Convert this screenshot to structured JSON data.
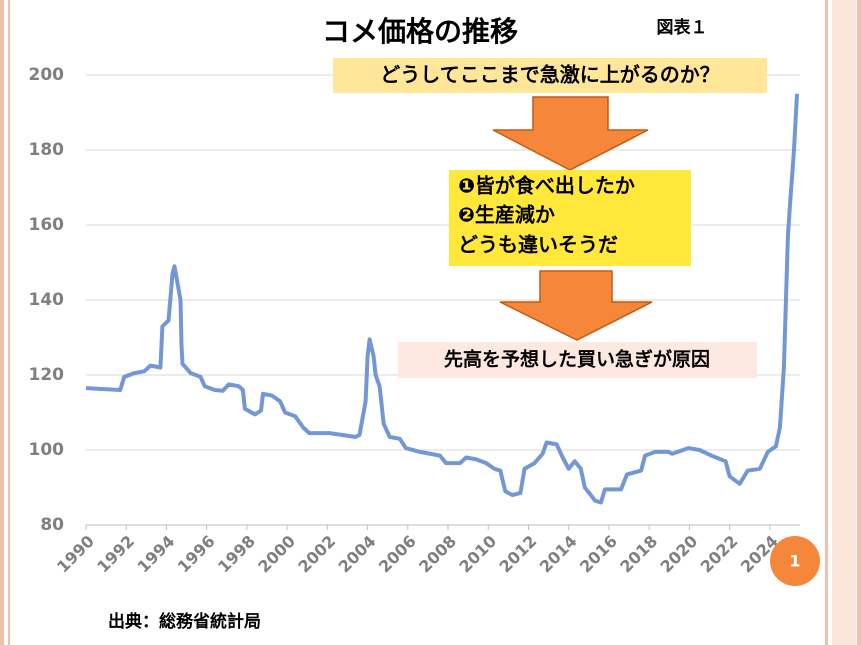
{
  "chart_data": {
    "type": "line",
    "title": "コメ価格の推移",
    "figure_label": "図表１",
    "x": [
      1990,
      1991.7,
      1991.9,
      1992.4,
      1992.9,
      1993.2,
      1993.7,
      1993.8,
      1994.1,
      1994.3,
      1994.4,
      1994.6,
      1994.7,
      1994.75,
      1994.8,
      1995.2,
      1995.7,
      1995.9,
      1996.4,
      1996.8,
      1997.1,
      1997.6,
      1997.8,
      1997.9,
      1998.4,
      1998.7,
      1998.8,
      1999.25,
      1999.65,
      1999.9,
      2000.4,
      2000.8,
      2001.1,
      2002.1,
      2003.4,
      2003.6,
      2003.9,
      2004.0,
      2004.1,
      2004.3,
      2004.4,
      2004.6,
      2004.8,
      2005.1,
      2005.6,
      2005.9,
      2006.6,
      2007.6,
      2007.9,
      2008.6,
      2008.9,
      2009.4,
      2009.9,
      2010.3,
      2010.6,
      2010.85,
      2011.2,
      2011.6,
      2011.8,
      2012.3,
      2012.7,
      2012.9,
      2013.4,
      2013.7,
      2014.0,
      2014.3,
      2014.6,
      2014.8,
      2015.1,
      2015.3,
      2015.6,
      2015.8,
      2016.6,
      2016.9,
      2017.6,
      2017.8,
      2018.3,
      2018.95,
      2019.15,
      2019.95,
      2020.5,
      2021.1,
      2021.8,
      2022.0,
      2022.5,
      2022.9,
      2023.5,
      2023.9,
      2024.3,
      2024.5,
      2024.7,
      2024.9,
      2025.0,
      2025.2,
      2025.35
    ],
    "values": [
      116.5,
      116,
      119.5,
      120.5,
      121,
      122.5,
      122,
      133,
      134.5,
      147,
      149,
      143,
      140,
      128,
      123,
      120.5,
      119.5,
      117,
      116,
      115.8,
      117.5,
      117,
      116,
      111,
      109.5,
      110.5,
      115,
      114.5,
      113,
      110,
      109,
      106,
      104.5,
      104.5,
      103.5,
      104,
      113,
      125,
      129.5,
      125,
      120,
      117,
      107,
      103.5,
      103,
      100.5,
      99.5,
      98.5,
      96.5,
      96.5,
      98,
      97.5,
      96.5,
      95,
      94.5,
      89,
      88,
      88.5,
      95,
      96.5,
      99,
      102,
      101.5,
      98,
      95,
      97,
      95,
      90,
      88,
      86.5,
      86,
      89.5,
      89.5,
      93.5,
      94.5,
      98.5,
      99.5,
      99.5,
      99,
      100.5,
      100,
      98.5,
      97,
      93,
      91,
      94.5,
      95,
      99.5,
      101,
      106,
      122,
      157,
      165,
      180,
      195
    ],
    "color": "#7397d6",
    "xlim": [
      1990,
      2025.5
    ],
    "xticks": [
      1990,
      1992,
      1994,
      1996,
      1998,
      2000,
      2002,
      2004,
      2006,
      2008,
      2010,
      2012,
      2014,
      2016,
      2018,
      2020,
      2022,
      2024
    ],
    "ylim": [
      80,
      200
    ],
    "yticks": [
      80,
      100,
      120,
      140,
      160,
      180,
      200
    ],
    "grid": true,
    "question": "どうしてここまで急激に上がるのか？",
    "hypotheses": [
      "❶皆が食べ出したか",
      "❷生産減か",
      "どうも違いそうだ"
    ],
    "conclusion": "先高を予想した買い急ぎが原因",
    "source": "出典：総務省統計局",
    "slide_number": "1"
  }
}
